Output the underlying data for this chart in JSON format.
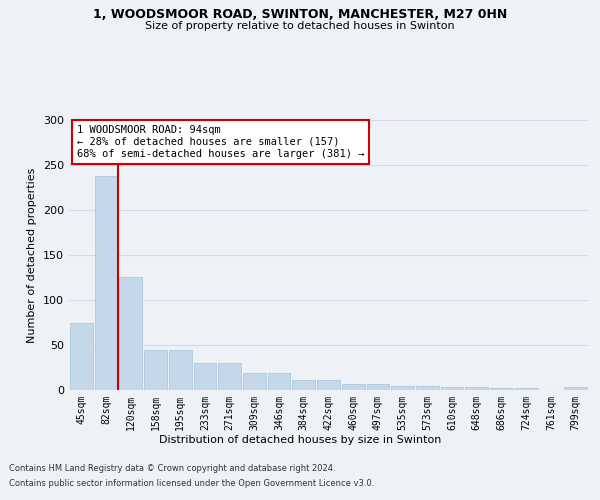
{
  "title1": "1, WOODSMOOR ROAD, SWINTON, MANCHESTER, M27 0HN",
  "title2": "Size of property relative to detached houses in Swinton",
  "xlabel": "Distribution of detached houses by size in Swinton",
  "ylabel": "Number of detached properties",
  "footer1": "Contains HM Land Registry data © Crown copyright and database right 2024.",
  "footer2": "Contains public sector information licensed under the Open Government Licence v3.0.",
  "categories": [
    "45sqm",
    "82sqm",
    "120sqm",
    "158sqm",
    "195sqm",
    "233sqm",
    "271sqm",
    "309sqm",
    "346sqm",
    "384sqm",
    "422sqm",
    "460sqm",
    "497sqm",
    "535sqm",
    "573sqm",
    "610sqm",
    "648sqm",
    "686sqm",
    "724sqm",
    "761sqm",
    "799sqm"
  ],
  "values": [
    74,
    238,
    126,
    44,
    44,
    30,
    30,
    19,
    19,
    11,
    11,
    7,
    7,
    4,
    4,
    3,
    3,
    2,
    2,
    0,
    3
  ],
  "bar_color": "#c5d8ea",
  "bar_edge_color": "#a8c4d8",
  "grid_color": "#d0dce8",
  "property_line_x": 1.5,
  "property_size": "94sqm",
  "pct_smaller": 28,
  "n_smaller": 157,
  "pct_larger": 68,
  "n_larger": 381,
  "annotation_box_color": "#ffffff",
  "annotation_box_edge": "#cc0000",
  "annotation_line_color": "#cc0000",
  "background_color": "#eef2f7",
  "ylim": [
    0,
    300
  ],
  "yticks": [
    0,
    50,
    100,
    150,
    200,
    250,
    300
  ]
}
